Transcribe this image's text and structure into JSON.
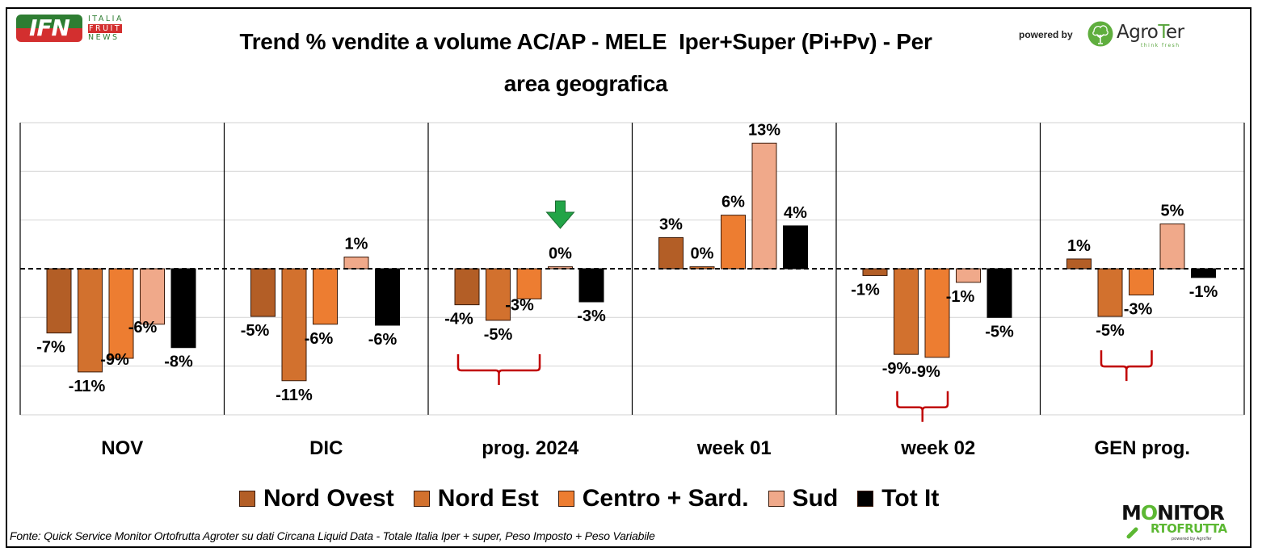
{
  "header": {
    "logo_left": {
      "main": "IFN",
      "line1": "ITALIA",
      "line2": "FRUIT",
      "line3": "NEWS"
    },
    "title_line1": "Trend % vendite a volume AC/AP - MELE  Iper+Super (Pi+Pv) - Per",
    "title_line2": "area geografica",
    "powered_by": "powered by",
    "logo_right": {
      "name_a": "Agro",
      "name_t": "T",
      "name_b": "er",
      "tagline": "think fresh"
    }
  },
  "footer": {
    "source": "Fonte: Quick Service Monitor Ortofrutta Agroter su dati Circana Liquid Data - Totale Italia Iper + super, Peso Imposto + Peso Variabile",
    "logo": {
      "line1_a": "M",
      "line1_o": "O",
      "line1_b": "NITOR",
      "line2": "RTOFRUTTA",
      "powered": "powered by AgroTer"
    }
  },
  "chart_data": {
    "type": "bar",
    "title": "Trend % vendite a volume AC/AP - MELE  Iper+Super (Pi+Pv) - Per area geografica",
    "xlabel": "",
    "ylabel": "",
    "ylim": [
      -15,
      15
    ],
    "ytick_step": 5,
    "grid": true,
    "zero_line": "dashed",
    "legend_position": "bottom",
    "categories": [
      "NOV",
      "DIC",
      "prog. 2024",
      "week 01",
      "week 02",
      "GEN prog."
    ],
    "series": [
      {
        "name": "Nord Ovest",
        "color": "#B35E26",
        "values": [
          -6.6,
          -4.9,
          -3.7,
          3.2,
          -0.7,
          1.0
        ],
        "labels": [
          "-7%",
          "-5%",
          "-4%",
          "3%",
          "-1%",
          "1%"
        ]
      },
      {
        "name": "Nord Est",
        "color": "#D2712E",
        "values": [
          -10.6,
          -11.5,
          -5.3,
          0.2,
          -8.8,
          -4.9
        ],
        "labels": [
          "-11%",
          "-11%",
          "-5%",
          "0%",
          "-9%",
          "-5%"
        ]
      },
      {
        "name": "Centro + Sard.",
        "color": "#ED7D31",
        "values": [
          -9.2,
          -5.7,
          -3.1,
          5.5,
          -9.1,
          -2.7
        ],
        "labels": [
          "-9%",
          "-6%",
          "-3%",
          "6%",
          "-9%",
          "-3%"
        ]
      },
      {
        "name": "Sud",
        "color": "#F0A98A",
        "values": [
          -5.7,
          1.2,
          0.2,
          12.9,
          -1.4,
          4.6
        ],
        "labels": [
          "-6%",
          "1%",
          "0%",
          "13%",
          "-1%",
          "5%"
        ]
      },
      {
        "name": "Tot It",
        "color": "#000000",
        "values": [
          -8.1,
          -5.8,
          -3.4,
          4.4,
          -5.0,
          -0.9
        ],
        "labels": [
          "-8%",
          "-6%",
          "-3%",
          "4%",
          "-5%",
          "-1%"
        ]
      }
    ],
    "annotations": [
      {
        "type": "arrow",
        "color": "#22A447",
        "category": "prog. 2024",
        "series": "Sud",
        "direction": "down"
      },
      {
        "type": "brace",
        "color": "#C00000",
        "category": "prog. 2024",
        "series_span": [
          "Nord Ovest",
          "Centro + Sard."
        ]
      },
      {
        "type": "brace",
        "color": "#C00000",
        "category": "week 02",
        "series_span": [
          "Nord Est",
          "Centro + Sard."
        ]
      },
      {
        "type": "brace",
        "color": "#C00000",
        "category": "GEN prog.",
        "series_span": [
          "Nord Est",
          "Centro + Sard."
        ]
      }
    ]
  }
}
